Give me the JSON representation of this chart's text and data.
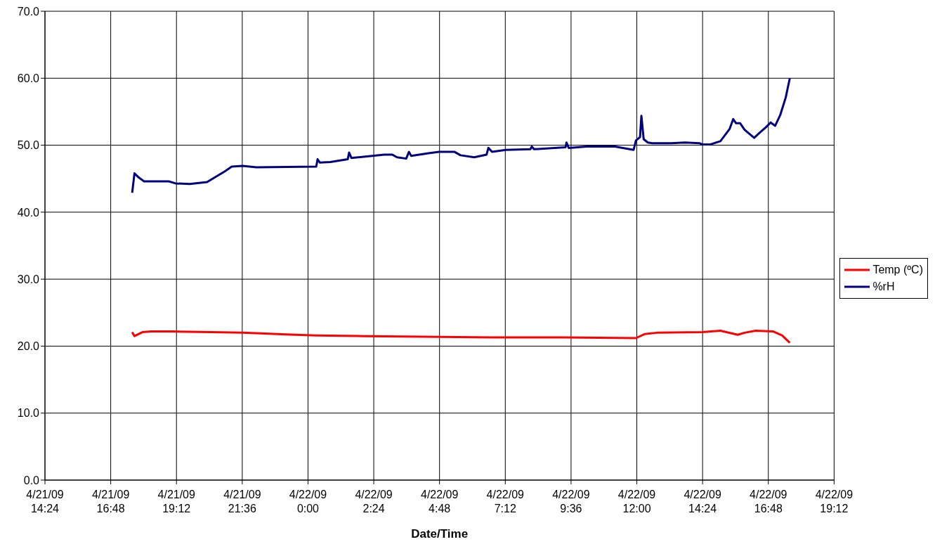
{
  "chart_data": {
    "type": "line",
    "xlabel": "Date/Time",
    "xlim": [
      "--04-21T14:24",
      "--04-22T19:12"
    ],
    "xticks": [
      {
        "value": "--04-21T14:24",
        "label": "4/21/09\n14:24"
      },
      {
        "value": "--04-21T16:48",
        "label": "4/21/09\n16:48"
      },
      {
        "value": "--04-21T19:12",
        "label": "4/21/09\n19:12"
      },
      {
        "value": "--04-21T21:36",
        "label": "4/21/09\n21:36"
      },
      {
        "value": "--04-22T00:00",
        "label": "4/22/09\n0:00"
      },
      {
        "value": "--04-22T02:24",
        "label": "4/22/09\n2:24"
      },
      {
        "value": "--04-22T04:48",
        "label": "4/22/09\n4:48"
      },
      {
        "value": "--04-22T07:12",
        "label": "4/22/09\n7:12"
      },
      {
        "value": "--04-22T09:36",
        "label": "4/22/09\n9:36"
      },
      {
        "value": "--04-22T12:00",
        "label": "4/22/09\n12:00"
      },
      {
        "value": "--04-22T14:24",
        "label": "4/22/09\n14:24"
      },
      {
        "value": "--04-22T16:48",
        "label": "4/22/09\n16:48"
      },
      {
        "value": "--04-22T19:12",
        "label": "4/22/09\n19:12"
      }
    ],
    "ylim": [
      0,
      70
    ],
    "yticks": [
      {
        "value": 0,
        "label": "0.0"
      },
      {
        "value": 10,
        "label": "10.0"
      },
      {
        "value": 20,
        "label": "20.0"
      },
      {
        "value": 30,
        "label": "30.0"
      },
      {
        "value": 40,
        "label": "40.0"
      },
      {
        "value": 50,
        "label": "50.0"
      },
      {
        "value": 60,
        "label": "60.0"
      },
      {
        "value": 70,
        "label": "70.0"
      }
    ],
    "grid": true,
    "legend": "right",
    "marker": "none",
    "line_style": "solid",
    "series": [
      {
        "name": "Temp (ºC)",
        "color": "#ff0000",
        "x": [
          "--04-21T17:35",
          "--04-21T17:40",
          "--04-21T17:58",
          "--04-21T18:16",
          "--04-21T19:02",
          "--04-21T21:37",
          "--04-21T23:32",
          "--04-22T00:18",
          "--04-22T02:05",
          "--04-22T04:09",
          "--04-22T06:43",
          "--04-22T09:17",
          "--04-22T11:58",
          "--04-22T12:17",
          "--04-22T12:44",
          "--04-22T14:24",
          "--04-22T15:03",
          "--04-22T15:41",
          "--04-22T15:56",
          "--04-22T16:20",
          "--04-22T16:58",
          "--04-22T17:18",
          "--04-22T17:35"
        ],
        "values": [
          22.1,
          21.5,
          22.1,
          22.2,
          22.2,
          22.0,
          21.7,
          21.6,
          21.5,
          21.4,
          21.3,
          21.3,
          21.2,
          21.8,
          22.0,
          22.1,
          22.3,
          21.7,
          22.0,
          22.3,
          22.2,
          21.6,
          20.5
        ]
      },
      {
        "name": "%rH",
        "color": "#000080",
        "x": [
          "--04-21T17:35",
          "--04-21T17:40",
          "--04-21T17:49",
          "--04-21T18:01",
          "--04-21T18:55",
          "--04-21T19:10",
          "--04-21T19:41",
          "--04-21T20:19",
          "--04-21T20:58",
          "--04-21T21:13",
          "--04-21T21:37",
          "--04-21T22:07",
          "--04-22T00:18",
          "--04-22T00:21",
          "--04-22T00:26",
          "--04-22T00:49",
          "--04-22T01:27",
          "--04-22T01:30",
          "--04-22T01:35",
          "--04-22T02:21",
          "--04-22T02:47",
          "--04-22T03:04",
          "--04-22T03:15",
          "--04-22T03:35",
          "--04-22T03:41",
          "--04-22T03:46",
          "--04-22T04:24",
          "--04-22T04:47",
          "--04-22T05:21",
          "--04-22T05:34",
          "--04-22T06:04",
          "--04-22T06:31",
          "--04-22T06:35",
          "--04-22T06:43",
          "--04-22T07:13",
          "--04-22T08:07",
          "--04-22T08:10",
          "--04-22T08:15",
          "--04-22T09:24",
          "--04-22T09:26",
          "--04-22T09:31",
          "--04-22T10:10",
          "--04-22T11:12",
          "--04-22T11:53",
          "--04-22T11:58",
          "--04-22T12:07",
          "--04-22T12:10",
          "--04-22T12:15",
          "--04-22T12:24",
          "--04-22T12:34",
          "--04-22T13:15",
          "--04-22T13:46",
          "--04-22T14:17",
          "--04-22T14:24",
          "--04-22T14:40",
          "--04-22T15:03",
          "--04-22T15:23",
          "--04-22T15:31",
          "--04-22T15:37",
          "--04-22T15:46",
          "--04-22T15:56",
          "--04-22T16:17",
          "--04-22T16:28",
          "--04-22T16:43",
          "--04-22T16:53",
          "--04-22T17:03",
          "--04-22T17:14",
          "--04-22T17:26",
          "--04-22T17:35"
        ],
        "values": [
          42.9,
          45.8,
          45.2,
          44.6,
          44.6,
          44.3,
          44.2,
          44.5,
          46.1,
          46.8,
          46.9,
          46.7,
          46.8,
          47.9,
          47.4,
          47.5,
          47.9,
          48.9,
          48.1,
          48.4,
          48.6,
          48.6,
          48.2,
          48.0,
          49.0,
          48.4,
          48.8,
          49.0,
          49.0,
          48.5,
          48.2,
          48.6,
          49.6,
          49.0,
          49.3,
          49.4,
          49.8,
          49.4,
          49.7,
          50.4,
          49.6,
          49.8,
          49.8,
          49.3,
          50.7,
          51.2,
          54.4,
          50.9,
          50.4,
          50.3,
          50.3,
          50.4,
          50.3,
          50.1,
          50.1,
          50.6,
          52.4,
          53.9,
          53.3,
          53.3,
          52.3,
          51.1,
          51.8,
          52.7,
          53.4,
          52.9,
          54.5,
          57.1,
          60.0
        ]
      }
    ]
  }
}
